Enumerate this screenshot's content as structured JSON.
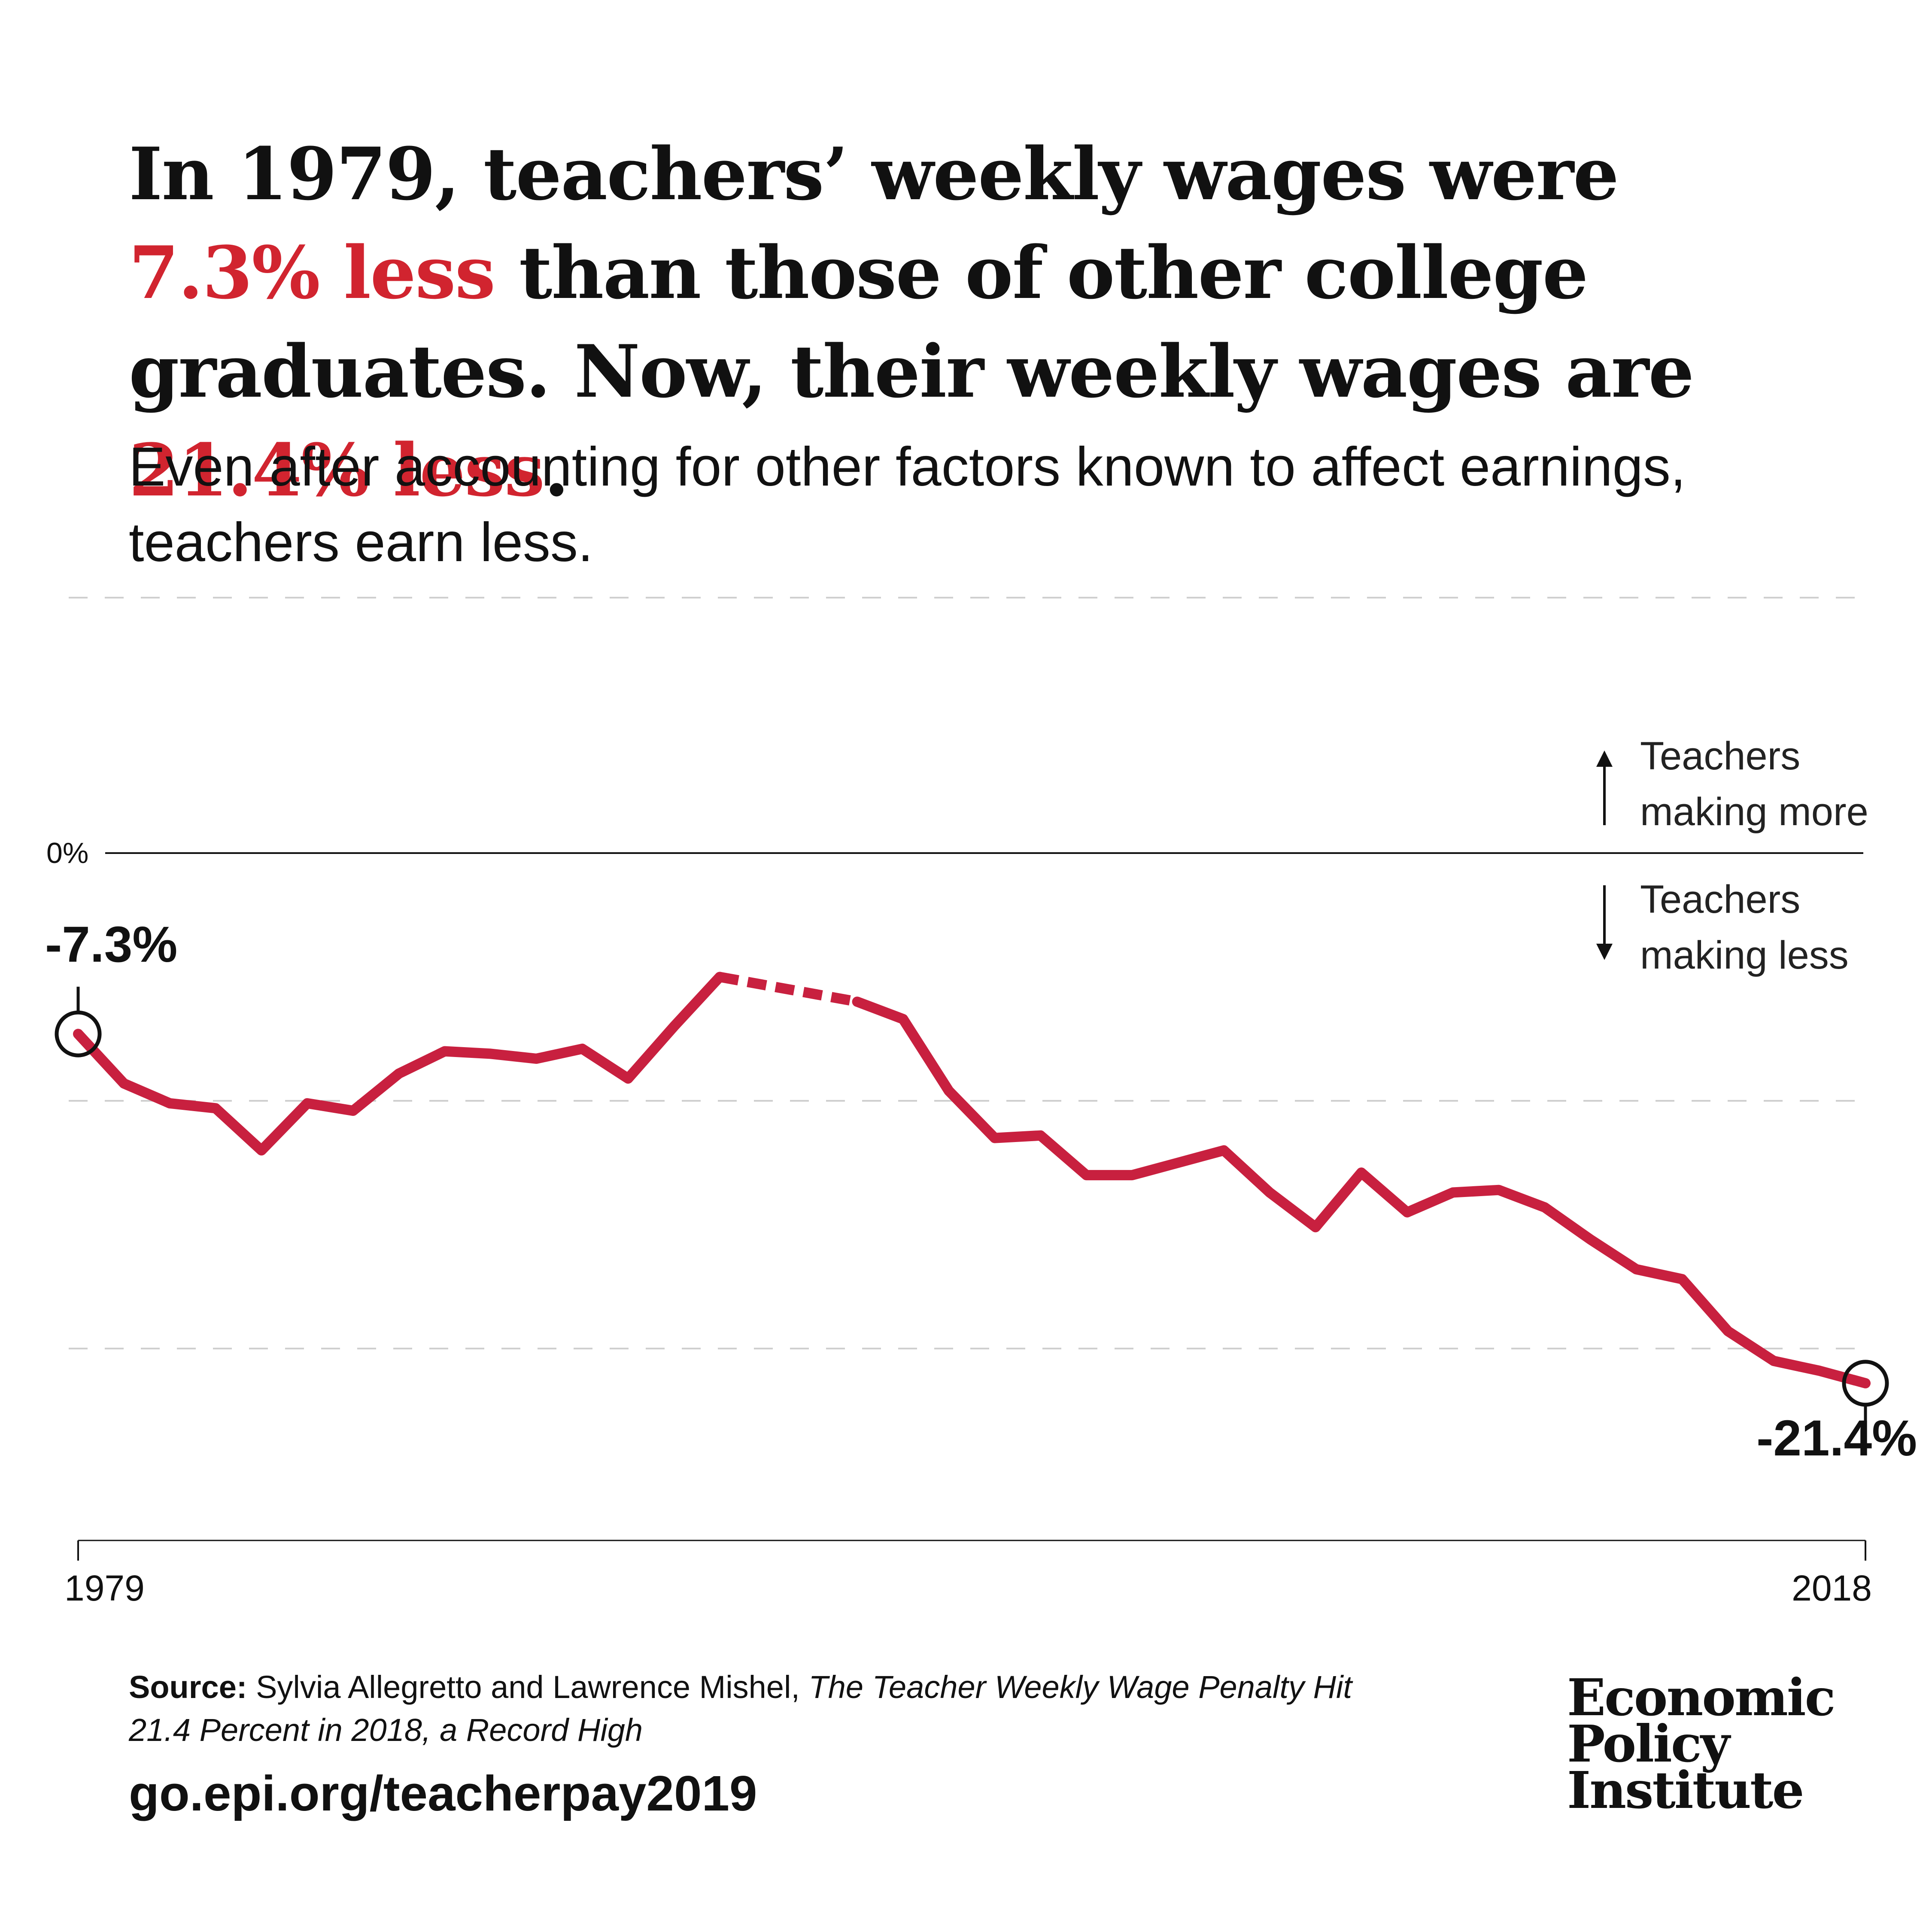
{
  "headline": {
    "p1": "In 1979, teachers’ weekly wages were ",
    "r1": "7.3% less",
    "p2": " than those of other college graduates. Now, their weekly wages are ",
    "r2": "21.4% less",
    "p3": "."
  },
  "subtitle": "Even after accounting for other factors known to affect earnings, teachers earn less.",
  "chart_data": {
    "type": "line",
    "title": "",
    "xlabel": "",
    "ylabel": "",
    "xlim": [
      1979,
      2018
    ],
    "ylim": [
      -26,
      4
    ],
    "zero_label": "0%",
    "x_tick_labels": [
      "1979",
      "2018"
    ],
    "annotations": {
      "start": "-7.3%",
      "end": "-21.4%",
      "above_text": [
        "Teachers",
        "making more"
      ],
      "below_text": [
        "Teachers",
        "making less"
      ]
    },
    "series": [
      {
        "color": "#c8203f",
        "values": [
          [
            1979,
            -7.3
          ],
          [
            1980,
            -9.3
          ],
          [
            1981,
            -10.1
          ],
          [
            1982,
            -10.3
          ],
          [
            1983,
            -12.0
          ],
          [
            1984,
            -10.1
          ],
          [
            1985,
            -10.4
          ],
          [
            1986,
            -8.9
          ],
          [
            1987,
            -8.0
          ],
          [
            1988,
            -8.1
          ],
          [
            1989,
            -8.3
          ],
          [
            1990,
            -7.9
          ],
          [
            1991,
            -9.1
          ],
          [
            1992,
            -7.0
          ],
          [
            1993,
            -5.0
          ],
          [
            1996,
            -6.0
          ],
          [
            1997,
            -6.7
          ],
          [
            1998,
            -9.6
          ],
          [
            1999,
            -11.5
          ],
          [
            2000,
            -11.4
          ],
          [
            2001,
            -13.0
          ],
          [
            2002,
            -13.0
          ],
          [
            2003,
            -12.5
          ],
          [
            2004,
            -12.0
          ],
          [
            2005,
            -13.7
          ],
          [
            2006,
            -15.1
          ],
          [
            2007,
            -12.9
          ],
          [
            2008,
            -14.5
          ],
          [
            2009,
            -13.7
          ],
          [
            2010,
            -13.6
          ],
          [
            2011,
            -14.3
          ],
          [
            2012,
            -15.6
          ],
          [
            2013,
            -16.8
          ],
          [
            2014,
            -17.2
          ],
          [
            2015,
            -19.3
          ],
          [
            2016,
            -20.5
          ],
          [
            2017,
            -20.9
          ],
          [
            2018,
            -21.4
          ]
        ]
      }
    ],
    "missing_gap": [
      1993,
      1996
    ],
    "grid": true
  },
  "source": {
    "label": "Source:",
    "authors": " Sylvia Allegretto and Lawrence Mishel, ",
    "title": "The Teacher Weekly Wage Penalty Hit 21.4 Percent in 2018, a Record High"
  },
  "url": "go.epi.org/teacherpay2019",
  "logo": [
    "Economic",
    "Policy",
    "Institute"
  ]
}
